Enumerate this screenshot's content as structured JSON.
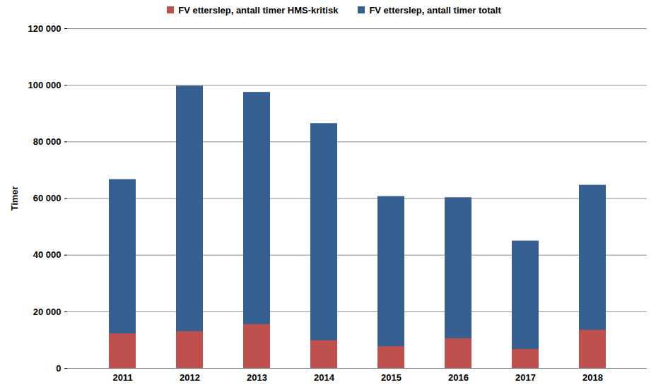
{
  "chart_data": {
    "type": "bar",
    "stacked": false,
    "categories": [
      "2011",
      "2012",
      "2013",
      "2014",
      "2015",
      "2016",
      "2017",
      "2018"
    ],
    "series": [
      {
        "name": "FV etterslep, antall timer HMS-kritisk",
        "color": "#c0504d",
        "values": [
          12200,
          13000,
          15500,
          9800,
          7700,
          10500,
          6700,
          13500
        ]
      },
      {
        "name": "FV etterslep, antall timer totalt",
        "color": "#376092",
        "values": [
          66700,
          99700,
          97500,
          86500,
          60700,
          60300,
          45000,
          64700
        ]
      }
    ],
    "y_label": "Timer",
    "ylim": [
      0,
      120000
    ],
    "yticks": [
      0,
      {
        "value": 20000,
        "label": "20 000"
      },
      {
        "value": 40000,
        "label": "40 000"
      },
      {
        "value": 60000,
        "label": "60 000"
      },
      {
        "value": 80000,
        "label": "80 000"
      },
      {
        "value": 100000,
        "label": "100 000"
      },
      {
        "value": 120000,
        "label": "120 000"
      }
    ],
    "grid": true,
    "legend": "top"
  }
}
